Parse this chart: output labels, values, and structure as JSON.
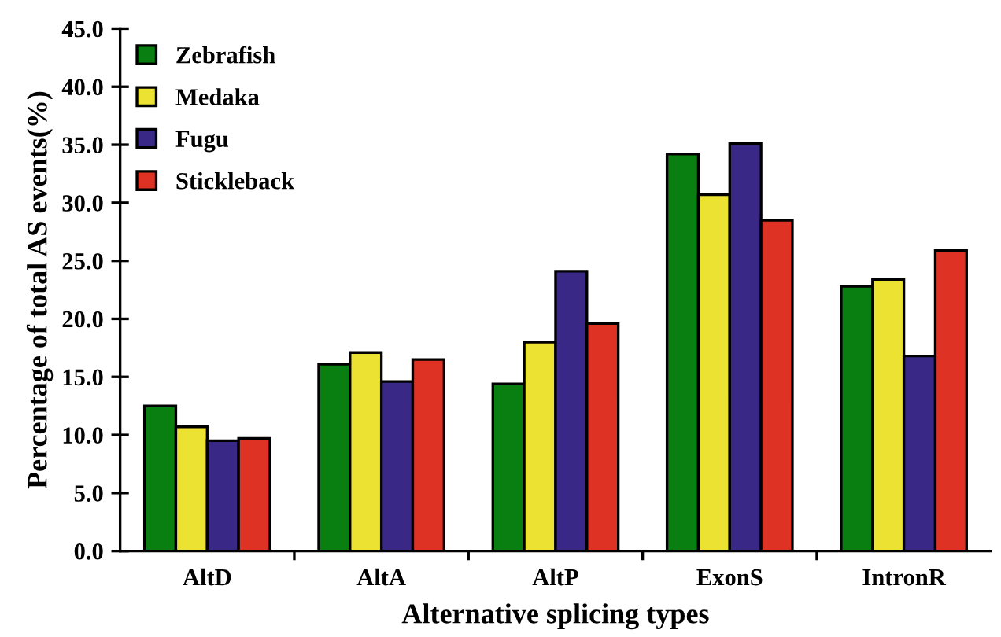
{
  "chart_data": {
    "type": "bar",
    "xlabel": "Alternative splicing types",
    "ylabel": "Percentage of total AS events(%)",
    "categories": [
      "AltD",
      "AltA",
      "AltP",
      "ExonS",
      "IntronR"
    ],
    "series": [
      {
        "name": "Zebrafish",
        "color": "#087f10",
        "values": [
          12.5,
          16.1,
          14.4,
          34.2,
          22.8
        ]
      },
      {
        "name": "Medaka",
        "color": "#ebe232",
        "values": [
          10.7,
          17.1,
          18.0,
          30.7,
          23.4
        ]
      },
      {
        "name": "Fugu",
        "color": "#392885",
        "values": [
          9.5,
          14.6,
          24.1,
          35.1,
          16.8
        ]
      },
      {
        "name": "Stickleback",
        "color": "#dd3224",
        "values": [
          9.7,
          16.5,
          19.6,
          28.5,
          25.9
        ]
      }
    ],
    "ylim": [
      0,
      45
    ],
    "yticks": [
      {
        "value": 0,
        "label": "0.0"
      },
      {
        "value": 5,
        "label": "5.0"
      },
      {
        "value": 10,
        "label": "10.0"
      },
      {
        "value": 15,
        "label": "15.0"
      },
      {
        "value": 20,
        "label": "20.0"
      },
      {
        "value": 25,
        "label": "25.0"
      },
      {
        "value": 30,
        "label": "30.0"
      },
      {
        "value": 35,
        "label": "35.0"
      },
      {
        "value": 40,
        "label": "40.0"
      },
      {
        "value": 45,
        "label": "45.0"
      }
    ],
    "grid": false,
    "legend": "top left"
  }
}
